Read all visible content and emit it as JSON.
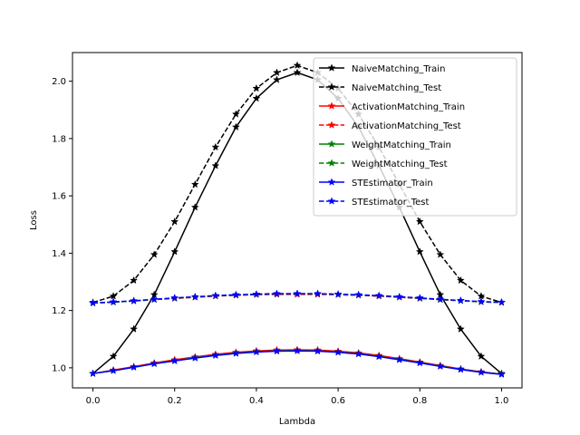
{
  "chart_data": {
    "type": "line",
    "title": "",
    "xlabel": "Lambda",
    "ylabel": "Loss",
    "xlim": [
      -0.05,
      1.05
    ],
    "ylim": [
      0.93,
      2.1
    ],
    "xticks": [
      "0.0",
      "0.2",
      "0.4",
      "0.6",
      "0.8",
      "1.0"
    ],
    "yticks": [
      "1.0",
      "1.2",
      "1.4",
      "1.6",
      "1.8",
      "2.0"
    ],
    "grid": false,
    "legend_position": "top-right",
    "x": [
      0.0,
      0.05,
      0.1,
      0.15,
      0.2,
      0.25,
      0.3,
      0.35,
      0.4,
      0.45,
      0.5,
      0.55,
      0.6,
      0.65,
      0.7,
      0.75,
      0.8,
      0.85,
      0.9,
      0.95,
      1.0
    ],
    "series": [
      {
        "name": "NaiveMatching_Train",
        "color": "#000000",
        "dashed": false,
        "values": [
          0.98,
          1.04,
          1.135,
          1.255,
          1.405,
          1.56,
          1.705,
          1.84,
          1.94,
          2.005,
          2.03,
          2.005,
          1.94,
          1.84,
          1.705,
          1.56,
          1.405,
          1.255,
          1.135,
          1.04,
          0.98
        ]
      },
      {
        "name": "NaiveMatching_Test",
        "color": "#000000",
        "dashed": true,
        "values": [
          1.228,
          1.25,
          1.305,
          1.395,
          1.51,
          1.64,
          1.77,
          1.885,
          1.975,
          2.03,
          2.055,
          2.03,
          1.975,
          1.885,
          1.77,
          1.64,
          1.51,
          1.395,
          1.305,
          1.25,
          1.228
        ]
      },
      {
        "name": "ActivationMatching_Train",
        "color": "#ff0000",
        "dashed": false,
        "values": [
          0.98,
          0.992,
          1.004,
          1.017,
          1.028,
          1.038,
          1.047,
          1.054,
          1.059,
          1.062,
          1.063,
          1.062,
          1.058,
          1.052,
          1.043,
          1.032,
          1.02,
          1.008,
          0.996,
          0.986,
          0.978
        ]
      },
      {
        "name": "ActivationMatching_Test",
        "color": "#ff0000",
        "dashed": true,
        "values": [
          1.226,
          1.229,
          1.233,
          1.238,
          1.242,
          1.246,
          1.25,
          1.253,
          1.255,
          1.256,
          1.256,
          1.256,
          1.255,
          1.253,
          1.25,
          1.246,
          1.242,
          1.238,
          1.234,
          1.23,
          1.228
        ]
      },
      {
        "name": "WeightMatching_Train",
        "color": "#008000",
        "dashed": false,
        "values": [
          0.98,
          0.99,
          1.002,
          1.014,
          1.025,
          1.035,
          1.044,
          1.051,
          1.056,
          1.059,
          1.06,
          1.059,
          1.055,
          1.049,
          1.04,
          1.029,
          1.018,
          1.006,
          0.995,
          0.985,
          0.978
        ]
      },
      {
        "name": "WeightMatching_Test",
        "color": "#008000",
        "dashed": true,
        "values": [
          1.226,
          1.229,
          1.233,
          1.238,
          1.243,
          1.247,
          1.251,
          1.254,
          1.256,
          1.258,
          1.258,
          1.258,
          1.256,
          1.254,
          1.251,
          1.247,
          1.243,
          1.238,
          1.234,
          1.23,
          1.228
        ]
      },
      {
        "name": "STEstimator_Train",
        "color": "#0000ff",
        "dashed": false,
        "values": [
          0.98,
          0.99,
          1.002,
          1.014,
          1.024,
          1.034,
          1.043,
          1.05,
          1.055,
          1.058,
          1.059,
          1.058,
          1.054,
          1.048,
          1.039,
          1.028,
          1.017,
          1.005,
          0.994,
          0.984,
          0.977
        ]
      },
      {
        "name": "STEstimator_Test",
        "color": "#0000ff",
        "dashed": true,
        "values": [
          1.226,
          1.23,
          1.234,
          1.239,
          1.244,
          1.248,
          1.252,
          1.255,
          1.257,
          1.259,
          1.259,
          1.259,
          1.257,
          1.255,
          1.252,
          1.248,
          1.244,
          1.239,
          1.235,
          1.231,
          1.229
        ]
      }
    ]
  }
}
